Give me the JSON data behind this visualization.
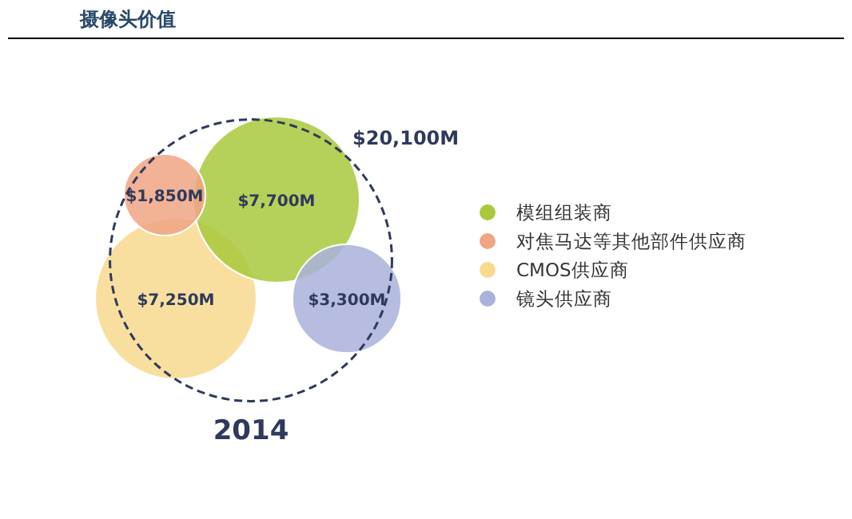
{
  "chart_data": {
    "type": "other",
    "title": "摄像头价值",
    "categories": [
      "2014"
    ],
    "series": [
      {
        "name": "模组组装商",
        "color": "#a9c93c",
        "values": [
          7700
        ],
        "value_labels": [
          "$7,700M"
        ]
      },
      {
        "name": "对焦马达等其他部件供应商",
        "color": "#f0a484",
        "values": [
          1850
        ],
        "value_labels": [
          "$1,850M"
        ]
      },
      {
        "name": "CMOS供应商",
        "color": "#f8d98e",
        "values": [
          7250
        ],
        "value_labels": [
          "$7,250M"
        ]
      },
      {
        "name": "镜头供应商",
        "color": "#a9b1dc",
        "values": [
          3300
        ],
        "value_labels": [
          "$3,300M"
        ]
      }
    ],
    "annotations": [
      "$20,100M"
    ],
    "legend": "right"
  }
}
